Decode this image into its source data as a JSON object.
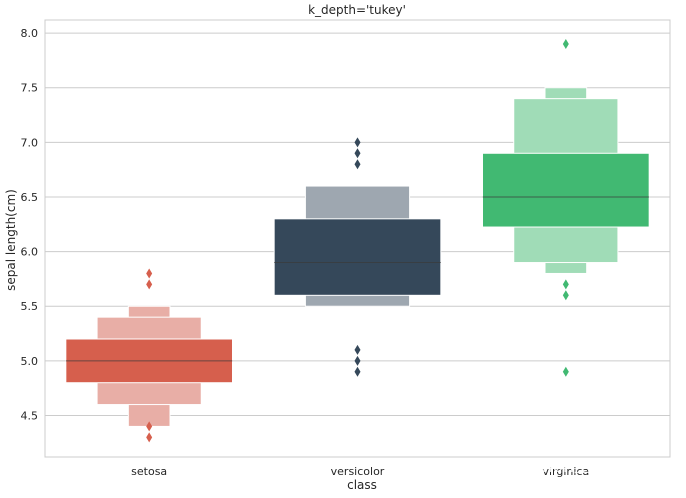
{
  "chart_data": {
    "type": "boxen",
    "title": "k_depth='tukey'",
    "xlabel": "class",
    "ylabel": "sepal length(cm)",
    "categories": [
      "setosa",
      "versicolor",
      "virginica"
    ],
    "ylim": [
      4.12,
      8.12
    ],
    "yticks": [
      4.5,
      5.0,
      5.5,
      6.0,
      6.5,
      7.0,
      7.5,
      8.0
    ],
    "grid": true,
    "groups": [
      {
        "category": "setosa",
        "color": "#d65f4d",
        "light_color": "#e8aea6",
        "median": 5.0,
        "boxes": [
          {
            "low": 4.8,
            "high": 5.2
          },
          {
            "low": 4.6,
            "high": 5.4
          },
          {
            "low": 4.4,
            "high": 5.5
          }
        ],
        "outliers": [
          5.8,
          5.7,
          4.4,
          4.3
        ]
      },
      {
        "category": "versicolor",
        "color": "#35485a",
        "light_color": "#9ea7b0",
        "median": 5.9,
        "boxes": [
          {
            "low": 5.6,
            "high": 6.3
          },
          {
            "low": 5.5,
            "high": 6.6
          }
        ],
        "outliers": [
          7.0,
          6.9,
          6.8,
          5.1,
          5.0,
          4.9
        ]
      },
      {
        "category": "virginica",
        "color": "#41b972",
        "light_color": "#a0dcb7",
        "median": 6.5,
        "boxes": [
          {
            "low": 6.225,
            "high": 6.9
          },
          {
            "low": 5.9,
            "high": 7.4
          },
          {
            "low": 5.8,
            "high": 7.5
          }
        ],
        "outliers": [
          7.9,
          5.7,
          5.6,
          4.9
        ]
      }
    ]
  },
  "watermark": {
    "main": "知乎 @python生物人",
    "url": "https://blog.csdn.net/qq_21478261"
  }
}
